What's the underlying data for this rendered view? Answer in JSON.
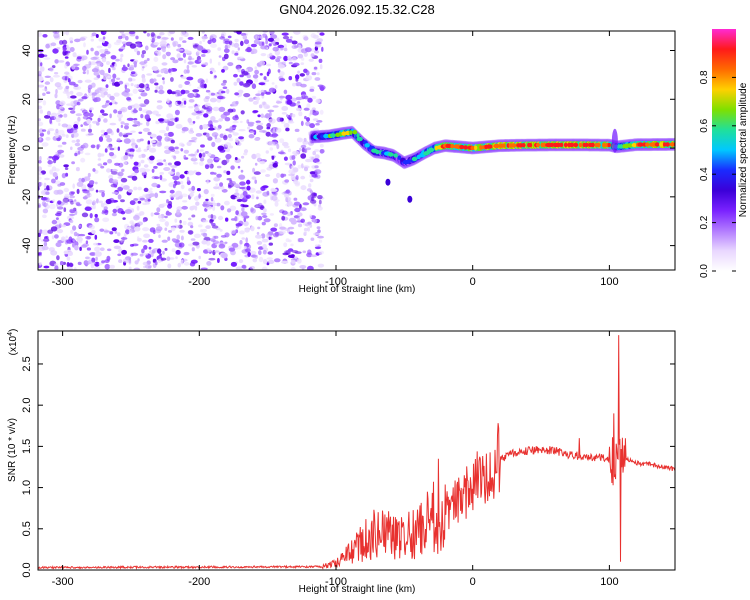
{
  "title": "GN04.2026.092.15.32.C28",
  "colors": {
    "snr_line": "#e8312f",
    "cmap": [
      "#ffffff",
      "#e9d7ff",
      "#b27bff",
      "#7a22ff",
      "#3b00d8",
      "#1a2bff",
      "#00c8ff",
      "#20e09a",
      "#7fe000",
      "#ffd000",
      "#ff6a00",
      "#ff1a1a",
      "#ff2ad4"
    ]
  },
  "chart_data": [
    {
      "type": "heatmap",
      "title": "GN04.2026.092.15.32.C28",
      "xlabel": "Height of straight line (km)",
      "ylabel": "Frequency (Hz)",
      "xlim": [
        -318,
        148
      ],
      "ylim": [
        -50,
        48
      ],
      "xticks": [
        -300,
        -200,
        -100,
        0,
        100
      ],
      "yticks": [
        -40,
        -20,
        0,
        20,
        40
      ],
      "colorbar": {
        "label": "Normalized spectral amplitude",
        "range": [
          0,
          1
        ],
        "ticks": [
          "0.0",
          "0.2",
          "0.4",
          "0.6",
          "0.8"
        ]
      },
      "features": {
        "noise_region_x": [
          -318,
          -110
        ],
        "signal_track": [
          {
            "x": -118,
            "y": 4.5,
            "amp": 0.35
          },
          {
            "x": -105,
            "y": 5.0,
            "amp": 0.55
          },
          {
            "x": -95,
            "y": 6.0,
            "amp": 0.8
          },
          {
            "x": -88,
            "y": 6.5,
            "amp": 0.6
          },
          {
            "x": -80,
            "y": 2.0,
            "amp": 0.45
          },
          {
            "x": -72,
            "y": -1.5,
            "amp": 0.5
          },
          {
            "x": -65,
            "y": -2.0,
            "amp": 0.45
          },
          {
            "x": -58,
            "y": -3.0,
            "amp": 0.5
          },
          {
            "x": -50,
            "y": -6.0,
            "amp": 0.45
          },
          {
            "x": -43,
            "y": -4.5,
            "amp": 0.5
          },
          {
            "x": -35,
            "y": -2.0,
            "amp": 0.55
          },
          {
            "x": -28,
            "y": 0.0,
            "amp": 0.7
          },
          {
            "x": -20,
            "y": 1.0,
            "amp": 0.85
          },
          {
            "x": -10,
            "y": 0.5,
            "amp": 0.8
          },
          {
            "x": 0,
            "y": 0.0,
            "amp": 0.85
          },
          {
            "x": 20,
            "y": 1.0,
            "amp": 0.9
          },
          {
            "x": 40,
            "y": 1.2,
            "amp": 0.9
          },
          {
            "x": 60,
            "y": 1.3,
            "amp": 0.95
          },
          {
            "x": 80,
            "y": 1.3,
            "amp": 0.95
          },
          {
            "x": 100,
            "y": 1.2,
            "amp": 0.85
          },
          {
            "x": 105,
            "y": 0.5,
            "amp": 0.5
          },
          {
            "x": 120,
            "y": 1.4,
            "amp": 0.85
          },
          {
            "x": 148,
            "y": 1.5,
            "amp": 0.9
          }
        ],
        "spurs": [
          {
            "x": -62,
            "y": -14,
            "amp": 0.25
          },
          {
            "x": -46,
            "y": -21,
            "amp": 0.25
          }
        ]
      }
    },
    {
      "type": "line",
      "xlabel": "Height of straight line (km)",
      "ylabel": "SNR (10 * v/v)",
      "y_multiplier": "(x10",
      "y_multiplier_exp": "4",
      "xlim": [
        -318,
        148
      ],
      "ylim": [
        0,
        2.9
      ],
      "xticks": [
        -300,
        -200,
        -100,
        0,
        100
      ],
      "yticks": [
        "0.0",
        "0.5",
        "1.0",
        "1.5",
        "2.0",
        "2.5"
      ],
      "envelope": {
        "x": [
          -318,
          -110,
          -100,
          -90,
          -80,
          -70,
          -60,
          -50,
          -40,
          -30,
          -20,
          -10,
          0,
          10,
          20,
          30,
          40,
          50,
          60,
          70,
          80,
          90,
          100,
          104,
          108,
          112,
          120,
          130,
          148
        ],
        "y": [
          0.03,
          0.04,
          0.08,
          0.2,
          0.35,
          0.45,
          0.4,
          0.38,
          0.45,
          0.6,
          0.7,
          0.85,
          1.0,
          1.2,
          1.35,
          1.42,
          1.45,
          1.46,
          1.45,
          1.4,
          1.38,
          1.37,
          1.35,
          1.3,
          1.4,
          1.35,
          1.3,
          1.28,
          1.22
        ]
      },
      "peaks": [
        {
          "x": 107,
          "y": 2.85
        },
        {
          "x": 108,
          "y": 0.1
        },
        {
          "x": -25,
          "y": 1.35
        },
        {
          "x": -33,
          "y": 0.95
        },
        {
          "x": 78,
          "y": 1.6
        },
        {
          "x": 103,
          "y": 1.9
        }
      ]
    }
  ]
}
